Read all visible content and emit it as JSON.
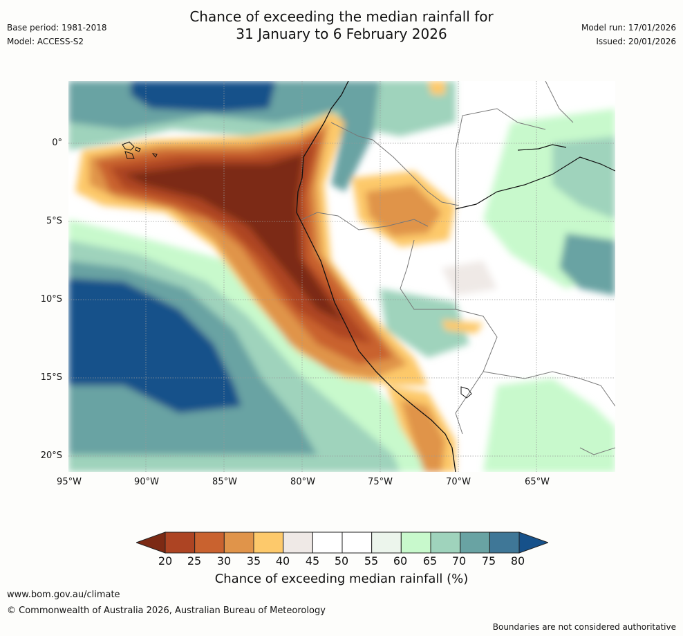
{
  "header": {
    "title_line1": "Chance of exceeding the median rainfall for",
    "title_line2": "31 January to 6 February 2026",
    "base_period": "Base period: 1981-2018",
    "model": "Model: ACCESS-S2",
    "model_run": "Model run: 17/01/2026",
    "issued": "Issued: 20/01/2026"
  },
  "axes": {
    "lat_labels": [
      "0°",
      "5°S",
      "10°S",
      "15°S",
      "20°S"
    ],
    "lon_labels": [
      "95°W",
      "90°W",
      "85°W",
      "80°W",
      "75°W",
      "70°W",
      "65°W"
    ]
  },
  "colorbar": {
    "ticks": [
      "20",
      "25",
      "30",
      "35",
      "40",
      "45",
      "50",
      "55",
      "60",
      "65",
      "70",
      "75",
      "80"
    ],
    "colors": [
      "#7c2a14",
      "#ad4423",
      "#c9622f",
      "#e0944a",
      "#fdc96b",
      "#efe9e6",
      "#ffffff",
      "#ffffff",
      "#ecf5ec",
      "#c8f9cc",
      "#9fd3bc",
      "#69a3a3",
      "#3f7797",
      "#16518a"
    ],
    "label": "Chance of exceeding median rainfall (%)"
  },
  "footer": {
    "url": "www.bom.gov.au/climate",
    "copyright": "© Commonwealth of Australia 2026, Australian Bureau of Meteorology",
    "disclaimer": "Boundaries are not considered authoritative"
  }
}
